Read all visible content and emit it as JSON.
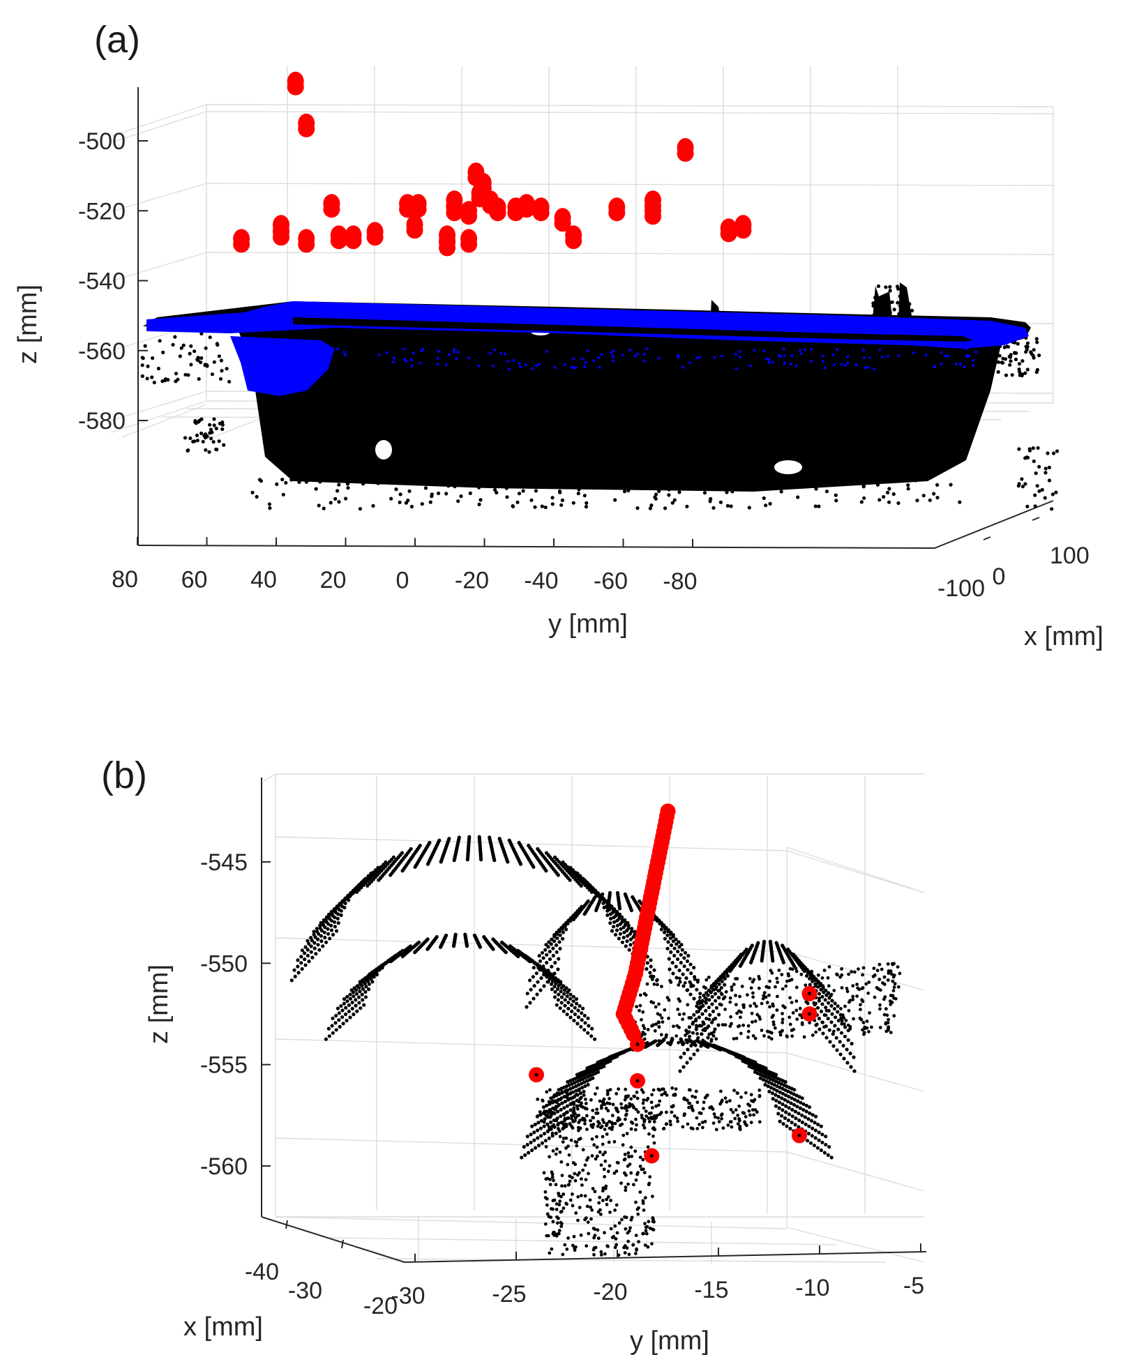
{
  "chart_data": [
    {
      "panel": "(a)",
      "type": "scatter",
      "xlabel": "y [mm]",
      "ylabel": "z [mm]",
      "depth_label": "x [mm]",
      "y_axis": {
        "ticks": [
          80,
          60,
          40,
          20,
          0,
          -20,
          -40,
          -60,
          -80
        ],
        "tick_labels": [
          "80",
          "60",
          "40",
          "20",
          "0",
          "-20",
          "-40",
          "-60",
          "-80"
        ],
        "range": [
          80,
          -100
        ]
      },
      "z_axis": {
        "ticks": [
          -500,
          -520,
          -540,
          -560,
          -580
        ],
        "tick_labels": [
          "-500",
          "-520",
          "-540",
          "-560",
          "-580"
        ],
        "range": [
          -583,
          -485
        ]
      },
      "x_axis": {
        "ticks": [
          -100,
          0,
          100
        ],
        "tick_labels": [
          "-100",
          "0",
          "100"
        ],
        "range": [
          -130,
          130
        ]
      },
      "grid": true,
      "series": [
        {
          "color": "#000000",
          "marker": "dot",
          "description_points": "dense black point cloud (tray body)",
          "points": []
        },
        {
          "color": "#0000ff",
          "marker": "dot",
          "points": []
        },
        {
          "color": "#ff0000",
          "marker": "circle",
          "points": [
            {
              "y": 36,
              "z": -483
            },
            {
              "y": 33,
              "z": -495
            },
            {
              "y": 51,
              "z": -528
            },
            {
              "y": 40,
              "z": -524
            },
            {
              "y": 40,
              "z": -526
            },
            {
              "y": 33,
              "z": -528
            },
            {
              "y": 26,
              "z": -518
            },
            {
              "y": 24,
              "z": -527
            },
            {
              "y": 20,
              "z": -527
            },
            {
              "y": 14,
              "z": -526
            },
            {
              "y": 5,
              "z": -518
            },
            {
              "y": 2,
              "z": -518
            },
            {
              "y": 3,
              "z": -524
            },
            {
              "y": -8,
              "z": -517
            },
            {
              "y": -8,
              "z": -519
            },
            {
              "y": -6,
              "z": -527
            },
            {
              "y": -6,
              "z": -529
            },
            {
              "y": -12,
              "z": -528
            },
            {
              "y": -12,
              "z": -520
            },
            {
              "y": -14,
              "z": -509
            },
            {
              "y": -16,
              "z": -512
            },
            {
              "y": -15,
              "z": -515
            },
            {
              "y": -18,
              "z": -517
            },
            {
              "y": -20,
              "z": -519
            },
            {
              "y": -25,
              "z": -519
            },
            {
              "y": -28,
              "z": -518
            },
            {
              "y": -32,
              "z": -519
            },
            {
              "y": -38,
              "z": -522
            },
            {
              "y": -41,
              "z": -527
            },
            {
              "y": -53,
              "z": -519
            },
            {
              "y": -63,
              "z": -517
            },
            {
              "y": -63,
              "z": -520
            },
            {
              "y": -72,
              "z": -502
            },
            {
              "y": -84,
              "z": -525
            },
            {
              "y": -88,
              "z": -524
            }
          ]
        }
      ]
    },
    {
      "panel": "(b)",
      "type": "scatter",
      "xlabel": "y [mm]",
      "ylabel": "z [mm]",
      "depth_label": "x [mm]",
      "y_axis": {
        "ticks": [
          -30,
          -25,
          -20,
          -15,
          -10,
          -5
        ],
        "tick_labels": [
          "-30",
          "-25",
          "-20",
          "-15",
          "-10",
          "-5"
        ],
        "range": [
          -30,
          -5
        ]
      },
      "z_axis": {
        "ticks": [
          -545,
          -550,
          -555,
          -560
        ],
        "tick_labels": [
          "-545",
          "-550",
          "-555",
          "-560"
        ],
        "range": [
          -563,
          -542
        ]
      },
      "x_axis": {
        "ticks": [
          -40,
          -30,
          -20
        ],
        "tick_labels": [
          "-40",
          "-30",
          "-20"
        ],
        "range": [
          -42,
          -18
        ]
      },
      "grid": true,
      "series": [
        {
          "color": "#000000",
          "marker": "dot",
          "points": []
        },
        {
          "color": "#ff0000",
          "marker": "circle",
          "points": [
            {
              "y": -17.5,
              "z": -542.5
            },
            {
              "y": -17.7,
              "z": -543.5
            },
            {
              "y": -17.9,
              "z": -544.5
            },
            {
              "y": -18.1,
              "z": -545.5
            },
            {
              "y": -18.3,
              "z": -546.5
            },
            {
              "y": -18.5,
              "z": -547.5
            },
            {
              "y": -18.7,
              "z": -548.5
            },
            {
              "y": -18.9,
              "z": -549.5
            },
            {
              "y": -19.1,
              "z": -550.5
            },
            {
              "y": -19.4,
              "z": -551.5
            },
            {
              "y": -19.7,
              "z": -552.5
            },
            {
              "y": -19.2,
              "z": -553.5
            },
            {
              "y": -19.0,
              "z": -554.0
            },
            {
              "y": -24.0,
              "z": -555.5
            },
            {
              "y": -19.0,
              "z": -555.8
            },
            {
              "y": -18.3,
              "z": -559.5
            },
            {
              "y": -11.0,
              "z": -558.5
            },
            {
              "y": -10.5,
              "z": -551.5
            },
            {
              "y": -10.5,
              "z": -552.5
            }
          ]
        }
      ]
    }
  ]
}
